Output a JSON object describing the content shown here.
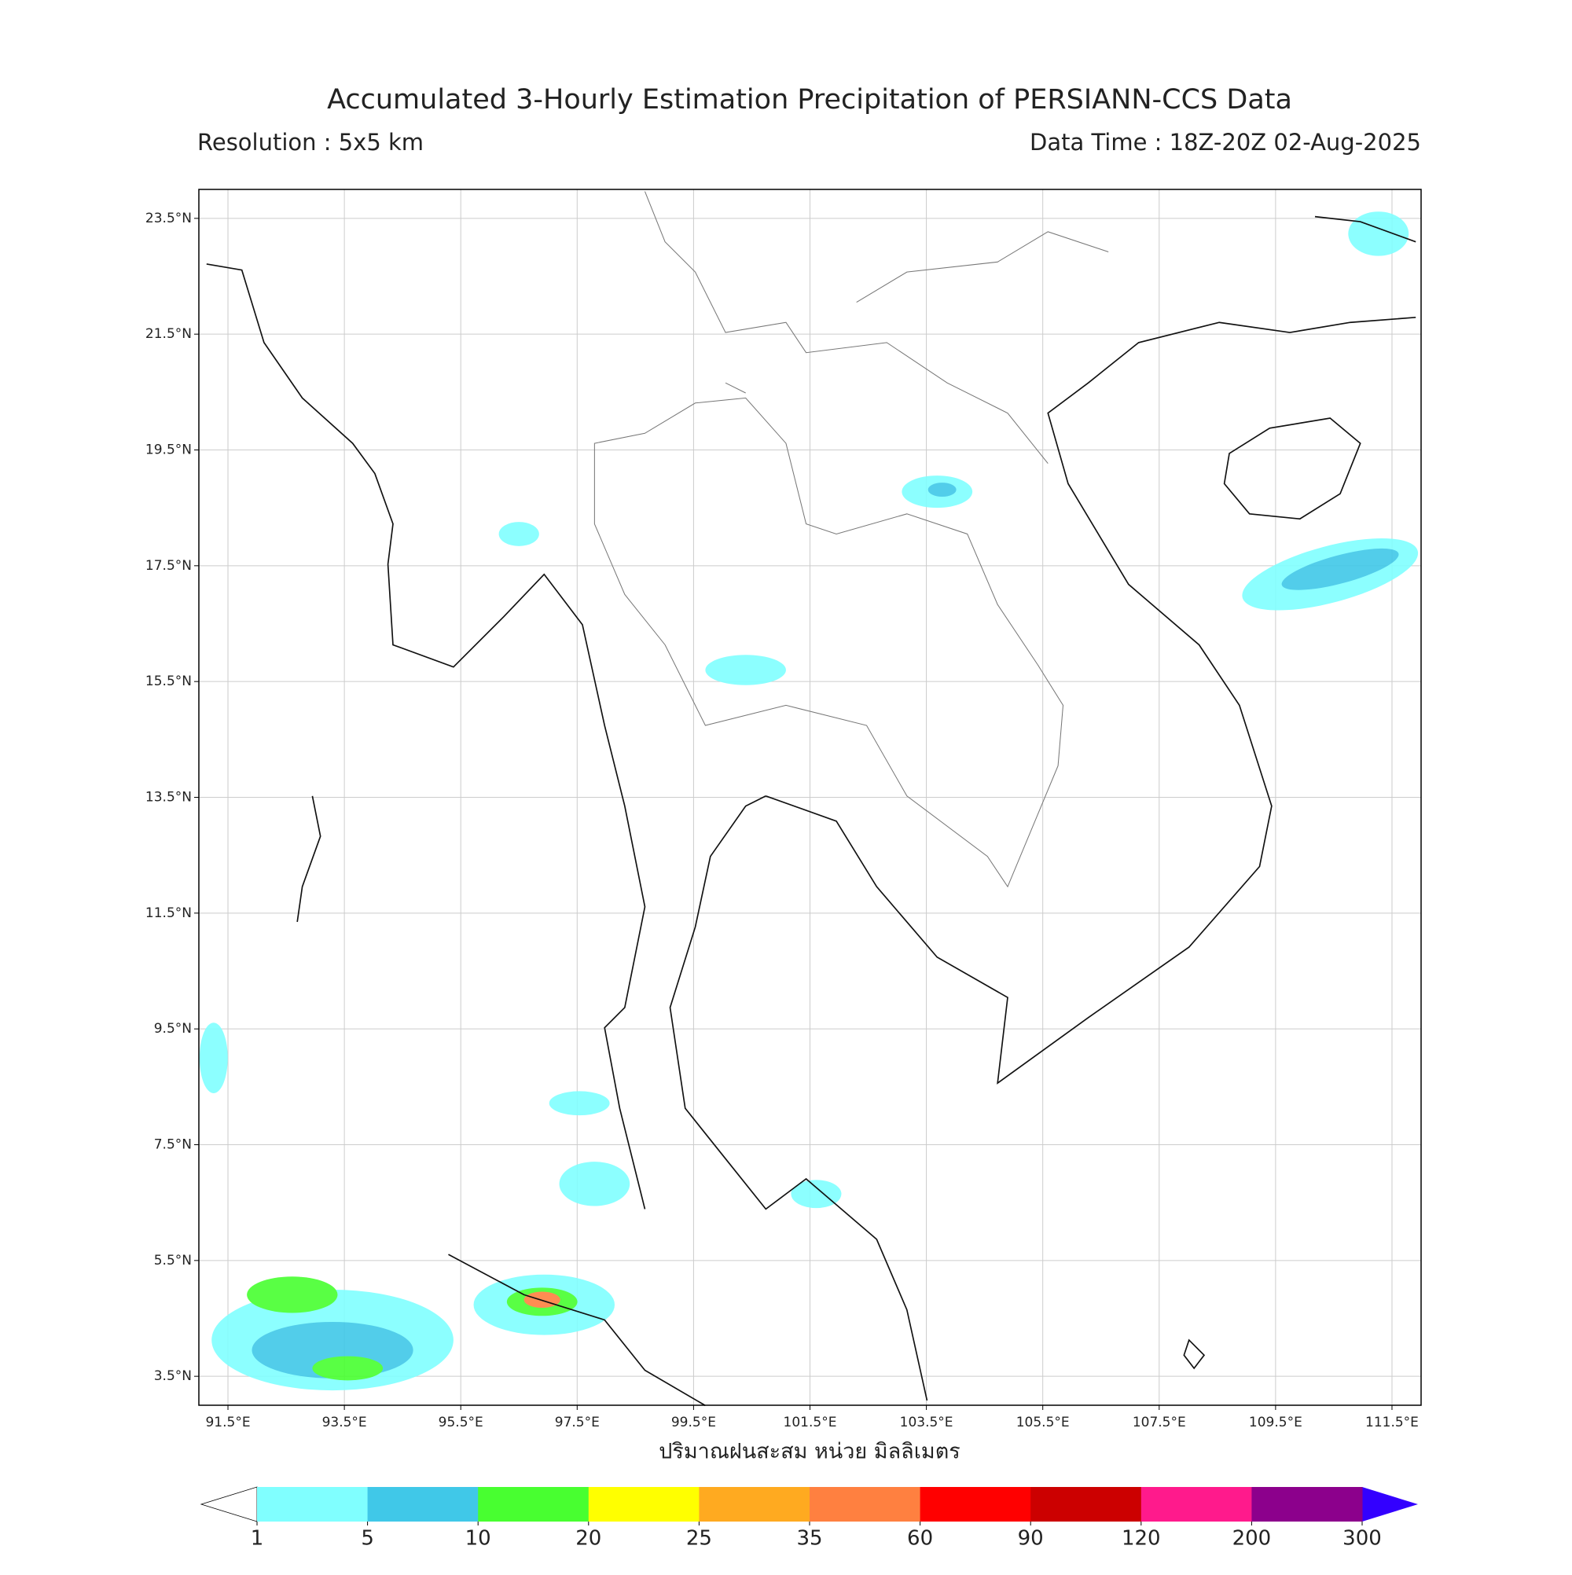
{
  "chart_data": {
    "type": "map",
    "title": "Accumulated 3-Hourly Estimation Precipitation of PERSIANN-CCS Data",
    "subtitle_left": "Resolution : 5x5 km",
    "subtitle_right": "Data Time : 18Z-20Z 02-Aug-2025",
    "x_label": "ปริมาณฝนสะสม หน่วย มิลลิเมตร",
    "xlim": [
      91,
      112
    ],
    "ylim": [
      3,
      24
    ],
    "grid": true,
    "xticks": [
      {
        "value": 91.5,
        "label": "91.5°E"
      },
      {
        "value": 93.5,
        "label": "93.5°E"
      },
      {
        "value": 95.5,
        "label": "95.5°E"
      },
      {
        "value": 97.5,
        "label": "97.5°E"
      },
      {
        "value": 99.5,
        "label": "99.5°E"
      },
      {
        "value": 101.5,
        "label": "101.5°E"
      },
      {
        "value": 103.5,
        "label": "103.5°E"
      },
      {
        "value": 105.5,
        "label": "105.5°E"
      },
      {
        "value": 107.5,
        "label": "107.5°E"
      },
      {
        "value": 109.5,
        "label": "109.5°E"
      },
      {
        "value": 111.5,
        "label": "111.5°E"
      }
    ],
    "yticks": [
      {
        "value": 3.5,
        "label": "3.5°N"
      },
      {
        "value": 5.5,
        "label": "5.5°N"
      },
      {
        "value": 7.5,
        "label": "7.5°N"
      },
      {
        "value": 9.5,
        "label": "9.5°N"
      },
      {
        "value": 11.5,
        "label": "11.5°N"
      },
      {
        "value": 13.5,
        "label": "13.5°N"
      },
      {
        "value": 15.5,
        "label": "15.5°N"
      },
      {
        "value": 17.5,
        "label": "17.5°N"
      },
      {
        "value": 19.5,
        "label": "19.5°N"
      },
      {
        "value": 21.5,
        "label": "21.5°N"
      },
      {
        "value": 23.5,
        "label": "23.5°N"
      }
    ],
    "colorbar": {
      "levels": [
        1,
        5,
        10,
        20,
        25,
        35,
        60,
        90,
        120,
        200,
        300
      ],
      "colors": [
        "#80ffff",
        "#40c8e8",
        "#48ff30",
        "#ffff00",
        "#ffaa20",
        "#ff8040",
        "#ff0000",
        "#cc0000",
        "#ff1a8c",
        "#8c008c"
      ],
      "under_color": "#ffffff",
      "over_color": "#3300ff"
    }
  }
}
